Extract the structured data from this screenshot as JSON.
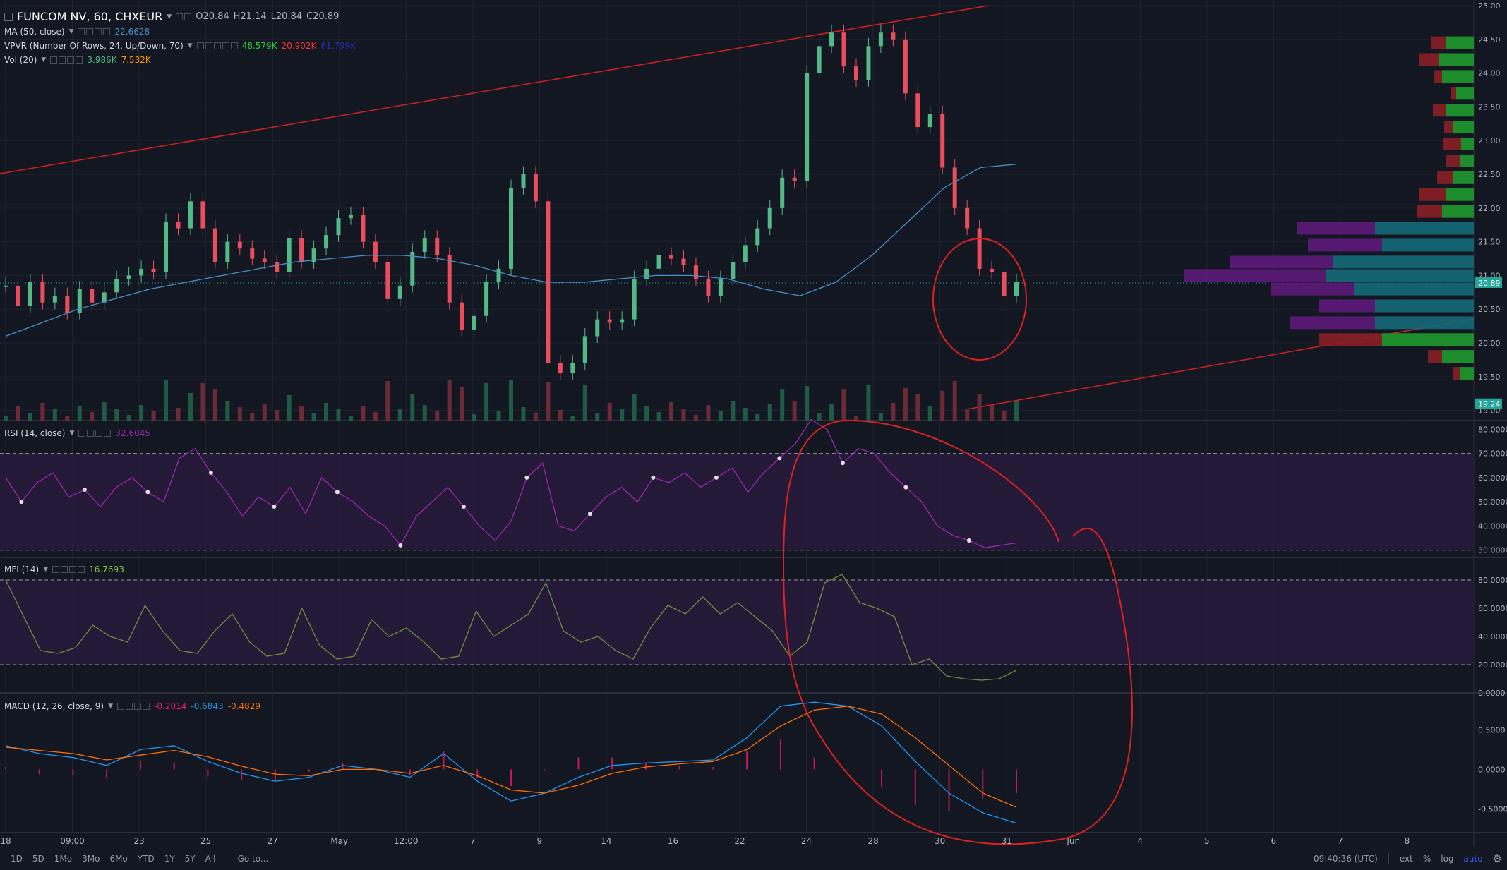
{
  "header": {
    "symbol": "FUNCOM NV, 60, CHXEUR",
    "open": "O20.84",
    "high": "H21.14",
    "low": "L20.84",
    "close": "C20.89"
  },
  "indicators": {
    "ma": {
      "label": "MA (50, close)",
      "value": "22.6628"
    },
    "vpvr": {
      "label": "VPVR (Number Of Rows, 24, Up/Down, 70)",
      "v1": "48.579K",
      "v2": "20.902K",
      "v3": "61.799K"
    },
    "vol": {
      "label": "Vol (20)",
      "v1": "3.986K",
      "v2": "7.532K"
    },
    "rsi": {
      "label": "RSI (14, close)",
      "value": "32.6045"
    },
    "mfi": {
      "label": "MFI (14)",
      "value": "16.7693"
    },
    "macd": {
      "label": "MACD (12, 26, close, 9)",
      "v1": "-0.2014",
      "v2": "-0.6843",
      "v3": "-0.4829"
    }
  },
  "price_axis": [
    "25.00",
    "24.50",
    "24.00",
    "23.50",
    "23.00",
    "22.50",
    "22.00",
    "21.50",
    "21.00",
    "20.50",
    "20.00",
    "19.50",
    "19.00"
  ],
  "price_tags": [
    "20.89",
    "19.24"
  ],
  "rsi_axis": [
    "80.0000",
    "70.0000",
    "60.0000",
    "50.0000",
    "40.0000",
    "30.0000"
  ],
  "mfi_axis": [
    "80.0000",
    "60.0000",
    "40.0000",
    "20.0000",
    "0.0000"
  ],
  "macd_axis": [
    "0.5000",
    "0.0000",
    "-0.5000"
  ],
  "time_axis": [
    "18",
    "09:00",
    "23",
    "25",
    "27",
    "May",
    "12:00",
    "7",
    "9",
    "14",
    "16",
    "22",
    "24",
    "28",
    "30",
    "31",
    "Jun",
    "4",
    "5",
    "6",
    "7",
    "8"
  ],
  "toolbar": {
    "ranges": [
      "1D",
      "5D",
      "1Mo",
      "3Mo",
      "6Mo",
      "YTD",
      "1Y",
      "5Y",
      "All"
    ],
    "goto": "Go to...",
    "time": "09:40:36 (UTC)",
    "right": [
      "ext",
      "%",
      "log",
      "auto"
    ]
  },
  "colors": {
    "bg": "#131722",
    "up": "#53b987",
    "down": "#eb4d5c",
    "ma": "#4a90c8",
    "rsi": "#9c27b0",
    "mfi": "#6f8f3a",
    "macd": "#2196f3",
    "signal": "#ff6d00",
    "annot": "#e02020"
  },
  "chart_data": [
    {
      "type": "candlestick",
      "title": "FUNCOM NV, 60, CHXEUR",
      "ylim": [
        18.85,
        25.0
      ],
      "close_path": [
        20.85,
        20.55,
        20.9,
        20.6,
        20.7,
        20.45,
        20.8,
        20.6,
        20.75,
        20.95,
        21.0,
        21.1,
        21.05,
        21.8,
        21.7,
        22.1,
        21.7,
        21.2,
        21.5,
        21.4,
        21.25,
        21.2,
        21.05,
        21.55,
        21.2,
        21.4,
        21.6,
        21.85,
        21.9,
        21.5,
        21.2,
        20.65,
        20.85,
        21.35,
        21.55,
        21.3,
        20.6,
        20.2,
        20.4,
        20.9,
        21.1,
        22.3,
        22.5,
        22.1,
        19.7,
        19.55,
        19.7,
        20.1,
        20.35,
        20.3,
        20.35,
        20.95,
        21.1,
        21.3,
        21.25,
        21.15,
        20.95,
        20.7,
        20.95,
        21.2,
        21.45,
        21.7,
        22.0,
        22.45,
        22.4,
        24.0,
        24.4,
        24.6,
        24.1,
        23.9,
        24.4,
        24.6,
        24.5,
        23.7,
        23.2,
        23.4,
        22.6,
        22.0,
        21.7,
        21.1,
        21.05,
        20.7,
        20.9
      ],
      "ma50": [
        20.1,
        20.3,
        20.5,
        20.65,
        20.8,
        20.9,
        21.0,
        21.1,
        21.2,
        21.25,
        21.3,
        21.3,
        21.25,
        21.15,
        21.0,
        20.9,
        20.9,
        20.95,
        21.0,
        21.0,
        20.95,
        20.8,
        20.7,
        20.9,
        21.3,
        21.8,
        22.3,
        22.6,
        22.65
      ]
    },
    {
      "type": "line",
      "title": "RSI (14, close)",
      "ylim": [
        27,
        83
      ],
      "values": [
        60,
        50,
        58,
        62,
        52,
        55,
        48,
        56,
        60,
        54,
        50,
        68,
        72,
        62,
        54,
        44,
        52,
        48,
        56,
        45,
        60,
        54,
        50,
        44,
        40,
        32,
        44,
        50,
        56,
        48,
        40,
        34,
        42,
        60,
        66,
        40,
        38,
        45,
        52,
        56,
        50,
        60,
        58,
        62,
        56,
        60,
        64,
        54,
        62,
        68,
        74,
        84,
        80,
        66,
        72,
        70,
        62,
        56,
        50,
        40,
        36,
        34,
        31,
        32,
        33
      ]
    },
    {
      "type": "line",
      "title": "MFI (14)",
      "ylim": [
        0,
        95
      ],
      "values": [
        80,
        55,
        30,
        28,
        32,
        48,
        40,
        36,
        62,
        44,
        30,
        28,
        44,
        56,
        36,
        26,
        28,
        60,
        34,
        24,
        26,
        52,
        40,
        46,
        36,
        24,
        26,
        58,
        40,
        48,
        56,
        78,
        44,
        36,
        40,
        30,
        24,
        46,
        62,
        56,
        68,
        56,
        64,
        54,
        44,
        26,
        36,
        78,
        84,
        64,
        60,
        54,
        20,
        24,
        12,
        10,
        9,
        10,
        16
      ]
    },
    {
      "type": "line",
      "title": "MACD (12, 26, close, 9)",
      "ylim": [
        -0.8,
        0.95
      ],
      "macd": [
        0.3,
        0.2,
        0.15,
        0.05,
        0.25,
        0.3,
        0.1,
        -0.05,
        -0.15,
        -0.1,
        0.05,
        0.0,
        -0.1,
        0.2,
        -0.15,
        -0.4,
        -0.3,
        -0.1,
        0.05,
        0.08,
        0.1,
        0.12,
        0.4,
        0.8,
        0.85,
        0.8,
        0.55,
        0.1,
        -0.3,
        -0.55,
        -0.68
      ],
      "signal": [
        0.28,
        0.24,
        0.2,
        0.12,
        0.18,
        0.24,
        0.16,
        0.04,
        -0.06,
        -0.08,
        0.0,
        0.0,
        -0.05,
        0.05,
        -0.08,
        -0.26,
        -0.3,
        -0.2,
        -0.05,
        0.03,
        0.07,
        0.1,
        0.25,
        0.55,
        0.75,
        0.8,
        0.7,
        0.4,
        0.05,
        -0.3,
        -0.48
      ]
    }
  ]
}
